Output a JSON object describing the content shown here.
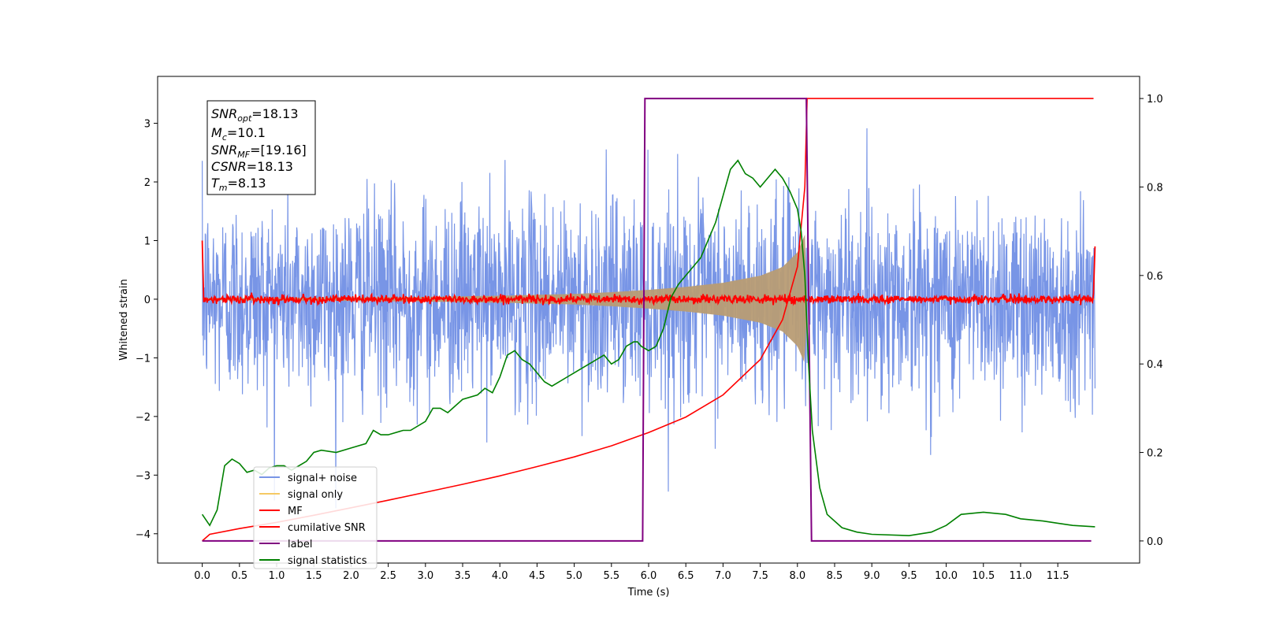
{
  "chart_data": {
    "type": "line",
    "xlabel": "Time (s)",
    "ylabel": "Whitened strain",
    "xlim": [
      -0.6,
      12.6
    ],
    "ylim_left": [
      -4.5,
      3.8
    ],
    "ylim_right": [
      -0.05,
      1.05
    ],
    "x_ticks": [
      "0.0",
      "0.5",
      "1.0",
      "1.5",
      "2.0",
      "2.5",
      "3.0",
      "3.5",
      "4.0",
      "4.5",
      "5.0",
      "5.5",
      "6.0",
      "6.5",
      "7.0",
      "7.5",
      "8.0",
      "8.5",
      "9.0",
      "9.5",
      "10.0",
      "10.5",
      "11.0",
      "11.5"
    ],
    "y_ticks_left": [
      3,
      2,
      1,
      0,
      -1,
      -2,
      -3,
      -4
    ],
    "y_tick_labels_left": [
      "3",
      "2",
      "1",
      "0",
      "−1",
      "−2",
      "−3",
      "−4"
    ],
    "y_ticks_right": [
      1.0,
      0.8,
      0.6,
      0.4,
      0.2,
      0.0
    ],
    "y_tick_labels_right": [
      "1.0",
      "0.8",
      "0.6",
      "0.4",
      "0.2",
      "0.0"
    ],
    "info_box": {
      "snr_opt": {
        "sym": "SNR",
        "sub": "opt",
        "val": "=18.13"
      },
      "mc": {
        "sym": "M",
        "sub": "c",
        "val": "=10.1"
      },
      "snr_mf": {
        "sym": "SNR",
        "sub": "MF",
        "val": "=[19.16]"
      },
      "csnr": {
        "sym": "CSNR",
        "sub": "",
        "val": "=18.13"
      },
      "tm": {
        "sym": "T",
        "sub": "m",
        "val": "=8.13"
      }
    },
    "legend_position": "lower-left",
    "series": [
      {
        "name": "signal+ noise",
        "color": "#7895e6",
        "axis": "left",
        "kind": "noise",
        "x_range": [
          0.0,
          12.0
        ],
        "std": 0.85,
        "peak_max": 3.35,
        "peak_min": -4.1
      },
      {
        "name": "signal only",
        "color": "#f5c964",
        "fill_color": "#b89c74",
        "axis": "left",
        "kind": "chirp_envelope",
        "points": [
          [
            0.0,
            0.02
          ],
          [
            1.0,
            0.025
          ],
          [
            2.0,
            0.03
          ],
          [
            3.0,
            0.04
          ],
          [
            4.0,
            0.06
          ],
          [
            5.0,
            0.09
          ],
          [
            5.5,
            0.12
          ],
          [
            6.0,
            0.16
          ],
          [
            6.5,
            0.21
          ],
          [
            7.0,
            0.28
          ],
          [
            7.5,
            0.4
          ],
          [
            7.8,
            0.55
          ],
          [
            8.0,
            0.8
          ],
          [
            8.1,
            1.1
          ],
          [
            8.13,
            0.0
          ],
          [
            12.0,
            0.0
          ]
        ]
      },
      {
        "name": "MF",
        "color": "#ff0000",
        "axis": "left",
        "kind": "mf",
        "x_range": [
          0.0,
          12.0
        ],
        "std": 0.035,
        "start": [
          [
            0.0,
            1.0
          ],
          [
            0.02,
            -0.05
          ]
        ],
        "end": [
          [
            11.98,
            0.1
          ],
          [
            12.0,
            0.9
          ]
        ]
      },
      {
        "name": "cumilative SNR",
        "color": "#ff0000",
        "axis": "right",
        "points": [
          [
            0.0,
            0.0
          ],
          [
            0.1,
            0.015
          ],
          [
            0.5,
            0.028
          ],
          [
            1.0,
            0.042
          ],
          [
            1.5,
            0.058
          ],
          [
            2.0,
            0.075
          ],
          [
            2.5,
            0.092
          ],
          [
            3.0,
            0.11
          ],
          [
            3.5,
            0.128
          ],
          [
            4.0,
            0.147
          ],
          [
            4.5,
            0.168
          ],
          [
            5.0,
            0.19
          ],
          [
            5.5,
            0.215
          ],
          [
            6.0,
            0.245
          ],
          [
            6.5,
            0.28
          ],
          [
            7.0,
            0.33
          ],
          [
            7.5,
            0.41
          ],
          [
            7.8,
            0.5
          ],
          [
            8.0,
            0.62
          ],
          [
            8.1,
            0.8
          ],
          [
            8.13,
            1.0
          ],
          [
            11.5,
            1.0
          ],
          [
            11.98,
            1.0
          ]
        ]
      },
      {
        "name": "label",
        "color": "#800080",
        "axis": "right",
        "points": [
          [
            0.0,
            0.0
          ],
          [
            5.92,
            0.0
          ],
          [
            5.95,
            1.0
          ],
          [
            8.12,
            1.0
          ],
          [
            8.19,
            0.0
          ],
          [
            11.95,
            0.0
          ]
        ]
      },
      {
        "name": "signal statistics",
        "color": "#008000",
        "axis": "right",
        "points": [
          [
            0.0,
            0.06
          ],
          [
            0.1,
            0.035
          ],
          [
            0.2,
            0.07
          ],
          [
            0.3,
            0.17
          ],
          [
            0.4,
            0.185
          ],
          [
            0.5,
            0.175
          ],
          [
            0.6,
            0.155
          ],
          [
            0.7,
            0.16
          ],
          [
            0.8,
            0.15
          ],
          [
            0.9,
            0.165
          ],
          [
            1.0,
            0.17
          ],
          [
            1.1,
            0.17
          ],
          [
            1.2,
            0.16
          ],
          [
            1.3,
            0.17
          ],
          [
            1.4,
            0.18
          ],
          [
            1.5,
            0.2
          ],
          [
            1.6,
            0.205
          ],
          [
            1.8,
            0.2
          ],
          [
            2.0,
            0.21
          ],
          [
            2.2,
            0.22
          ],
          [
            2.3,
            0.25
          ],
          [
            2.4,
            0.24
          ],
          [
            2.5,
            0.24
          ],
          [
            2.7,
            0.25
          ],
          [
            2.8,
            0.25
          ],
          [
            3.0,
            0.27
          ],
          [
            3.1,
            0.3
          ],
          [
            3.2,
            0.3
          ],
          [
            3.3,
            0.29
          ],
          [
            3.5,
            0.32
          ],
          [
            3.7,
            0.33
          ],
          [
            3.8,
            0.345
          ],
          [
            3.9,
            0.335
          ],
          [
            4.0,
            0.37
          ],
          [
            4.1,
            0.42
          ],
          [
            4.2,
            0.43
          ],
          [
            4.3,
            0.41
          ],
          [
            4.4,
            0.4
          ],
          [
            4.5,
            0.38
          ],
          [
            4.6,
            0.36
          ],
          [
            4.7,
            0.35
          ],
          [
            4.8,
            0.36
          ],
          [
            4.9,
            0.37
          ],
          [
            5.0,
            0.38
          ],
          [
            5.1,
            0.39
          ],
          [
            5.2,
            0.4
          ],
          [
            5.3,
            0.41
          ],
          [
            5.4,
            0.42
          ],
          [
            5.5,
            0.4
          ],
          [
            5.6,
            0.41
          ],
          [
            5.7,
            0.44
          ],
          [
            5.8,
            0.45
          ],
          [
            5.85,
            0.45
          ],
          [
            5.9,
            0.44
          ],
          [
            6.0,
            0.43
          ],
          [
            6.1,
            0.44
          ],
          [
            6.2,
            0.48
          ],
          [
            6.3,
            0.55
          ],
          [
            6.4,
            0.58
          ],
          [
            6.5,
            0.6
          ],
          [
            6.6,
            0.62
          ],
          [
            6.7,
            0.64
          ],
          [
            6.8,
            0.68
          ],
          [
            6.9,
            0.72
          ],
          [
            7.0,
            0.78
          ],
          [
            7.1,
            0.84
          ],
          [
            7.2,
            0.86
          ],
          [
            7.3,
            0.83
          ],
          [
            7.4,
            0.82
          ],
          [
            7.5,
            0.8
          ],
          [
            7.6,
            0.82
          ],
          [
            7.7,
            0.84
          ],
          [
            7.8,
            0.82
          ],
          [
            7.9,
            0.79
          ],
          [
            8.0,
            0.75
          ],
          [
            8.05,
            0.7
          ],
          [
            8.1,
            0.6
          ],
          [
            8.15,
            0.4
          ],
          [
            8.2,
            0.25
          ],
          [
            8.3,
            0.12
          ],
          [
            8.4,
            0.06
          ],
          [
            8.6,
            0.03
          ],
          [
            8.8,
            0.02
          ],
          [
            9.0,
            0.015
          ],
          [
            9.5,
            0.012
          ],
          [
            9.8,
            0.02
          ],
          [
            10.0,
            0.035
          ],
          [
            10.2,
            0.06
          ],
          [
            10.5,
            0.065
          ],
          [
            10.8,
            0.06
          ],
          [
            11.0,
            0.05
          ],
          [
            11.3,
            0.045
          ],
          [
            11.5,
            0.04
          ],
          [
            11.7,
            0.035
          ],
          [
            12.0,
            0.032
          ]
        ]
      }
    ]
  }
}
